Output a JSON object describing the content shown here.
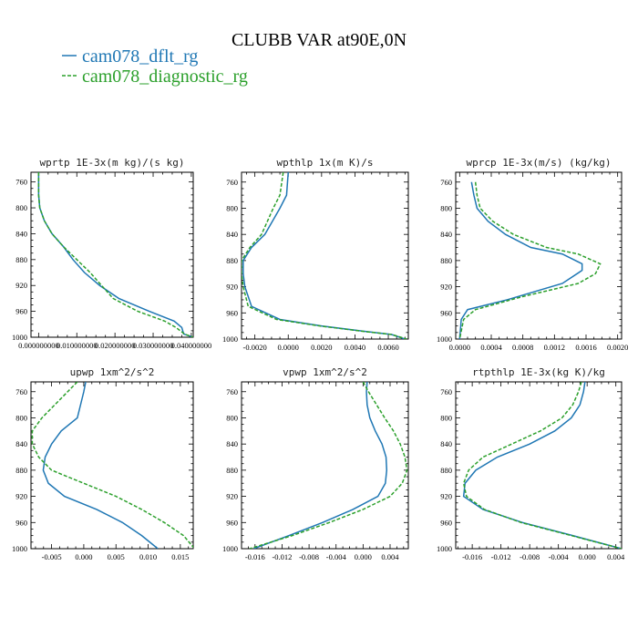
{
  "figure": {
    "title": "CLUBB VAR at90E,0N",
    "legend": [
      {
        "label": "cam078_dflt_rg",
        "color": "#1f77b4",
        "dash": false
      },
      {
        "label": "cam078_diagnostic_rg",
        "color": "#2ca02c",
        "dash": true
      }
    ]
  },
  "chart_data": [
    {
      "type": "line",
      "id": "wprtp",
      "title": "wprtp  1E-3x(m kg)/(s kg)",
      "xlim": [
        -0.002,
        0.0405
      ],
      "ylim": [
        1000,
        745
      ],
      "xticks": [
        0,
        0.01,
        0.02,
        0.03,
        0.04
      ],
      "xtick_labels": [
        "0.000000000",
        "0.010000000",
        "0.020000000",
        "0.030000000",
        "0.040000000"
      ],
      "yticks": [
        760,
        800,
        840,
        880,
        920,
        960,
        1000
      ],
      "series": [
        {
          "name": "cam078_dflt_rg",
          "points": [
            [
              0.0,
              745
            ],
            [
              0.0,
              760
            ],
            [
              0.0,
              780
            ],
            [
              0.0003,
              800
            ],
            [
              0.0015,
              820
            ],
            [
              0.0035,
              840
            ],
            [
              0.0065,
              860
            ],
            [
              0.009,
              880
            ],
            [
              0.012,
              900
            ],
            [
              0.016,
              920
            ],
            [
              0.021,
              940
            ],
            [
              0.029,
              960
            ],
            [
              0.0355,
              975
            ],
            [
              0.0375,
              985
            ],
            [
              0.038,
              995
            ],
            [
              0.0405,
              1000
            ]
          ]
        },
        {
          "name": "cam078_diagnostic_rg",
          "points": [
            [
              0.0,
              745
            ],
            [
              0.0,
              760
            ],
            [
              0.0,
              780
            ],
            [
              0.0003,
              800
            ],
            [
              0.0015,
              820
            ],
            [
              0.0035,
              840
            ],
            [
              0.0065,
              860
            ],
            [
              0.01,
              880
            ],
            [
              0.0135,
              900
            ],
            [
              0.0165,
              920
            ],
            [
              0.0195,
              940
            ],
            [
              0.026,
              960
            ],
            [
              0.033,
              975
            ],
            [
              0.036,
              985
            ],
            [
              0.0382,
              995
            ],
            [
              0.0405,
              1000
            ]
          ]
        }
      ]
    },
    {
      "type": "line",
      "id": "wpthlp",
      "title": "wpthlp  1x(m K)/s",
      "xlim": [
        -0.0028,
        0.0072
      ],
      "ylim": [
        1000,
        745
      ],
      "xticks": [
        -0.002,
        0,
        0.002,
        0.004,
        0.006
      ],
      "xtick_labels": [
        "-0.0020",
        "0.0000",
        "0.0020",
        "0.0040",
        "0.0060"
      ],
      "yticks": [
        760,
        800,
        840,
        880,
        920,
        960,
        1000
      ],
      "series": [
        {
          "name": "cam078_dflt_rg",
          "points": [
            [
              0.0,
              745
            ],
            [
              -0.0001,
              780
            ],
            [
              -0.0005,
              800
            ],
            [
              -0.0014,
              840
            ],
            [
              -0.0022,
              860
            ],
            [
              -0.0027,
              880
            ],
            [
              -0.0027,
              900
            ],
            [
              -0.0026,
              920
            ],
            [
              -0.0022,
              950
            ],
            [
              -0.0005,
              970
            ],
            [
              0.002,
              980
            ],
            [
              0.0045,
              988
            ],
            [
              0.0062,
              993
            ],
            [
              0.007,
              1000
            ]
          ]
        },
        {
          "name": "cam078_diagnostic_rg",
          "points": [
            [
              -0.0003,
              745
            ],
            [
              -0.0005,
              780
            ],
            [
              -0.0009,
              800
            ],
            [
              -0.0016,
              840
            ],
            [
              -0.0023,
              860
            ],
            [
              -0.0028,
              880
            ],
            [
              -0.0028,
              900
            ],
            [
              -0.0027,
              920
            ],
            [
              -0.0024,
              950
            ],
            [
              -0.0007,
              970
            ],
            [
              0.0019,
              980
            ],
            [
              0.0044,
              988
            ],
            [
              0.0062,
              993
            ],
            [
              0.0071,
              1000
            ]
          ]
        }
      ]
    },
    {
      "type": "line",
      "id": "wprcp",
      "title": "wprcp  1E-3x(m/s) (kg/kg)",
      "xlim": [
        -5e-05,
        0.00205
      ],
      "ylim": [
        1000,
        745
      ],
      "xticks": [
        0,
        0.0004,
        0.0008,
        0.0012,
        0.0016,
        0.002
      ],
      "xtick_labels": [
        "0.0000",
        "0.0004",
        "0.0008",
        "0.0012",
        "0.0016",
        "0.0020"
      ],
      "yticks": [
        760,
        800,
        840,
        880,
        920,
        960,
        1000
      ],
      "series": [
        {
          "name": "cam078_dflt_rg",
          "points": [
            [
              0.00015,
              760
            ],
            [
              0.00018,
              780
            ],
            [
              0.00022,
              800
            ],
            [
              0.00036,
              820
            ],
            [
              0.00058,
              840
            ],
            [
              0.0009,
              860
            ],
            [
              0.0013,
              870
            ],
            [
              0.00155,
              885
            ],
            [
              0.00155,
              895
            ],
            [
              0.0013,
              915
            ],
            [
              0.0006,
              940
            ],
            [
              0.0001,
              955
            ],
            [
              2e-05,
              970
            ],
            [
              0.0,
              1000
            ]
          ]
        },
        {
          "name": "cam078_diagnostic_rg",
          "points": [
            [
              0.0002,
              760
            ],
            [
              0.00022,
              780
            ],
            [
              0.00026,
              800
            ],
            [
              0.00042,
              820
            ],
            [
              0.00068,
              840
            ],
            [
              0.0011,
              860
            ],
            [
              0.0015,
              870
            ],
            [
              0.00178,
              885
            ],
            [
              0.00172,
              900
            ],
            [
              0.0015,
              915
            ],
            [
              0.0008,
              935
            ],
            [
              0.0002,
              955
            ],
            [
              5e-05,
              970
            ],
            [
              0.0,
              1000
            ]
          ]
        }
      ]
    },
    {
      "type": "line",
      "id": "upwp",
      "title": "upwp  1xm^2/s^2",
      "xlim": [
        -0.0082,
        0.017
      ],
      "ylim": [
        1000,
        745
      ],
      "xticks": [
        -0.005,
        0,
        0.005,
        0.01,
        0.015
      ],
      "xtick_labels": [
        "-0.005",
        "0.000",
        "0.005",
        "0.010",
        "0.015"
      ],
      "yticks": [
        760,
        800,
        840,
        880,
        920,
        960,
        1000
      ],
      "series": [
        {
          "name": "cam078_dflt_rg",
          "points": [
            [
              0.0003,
              745
            ],
            [
              0.0,
              760
            ],
            [
              -0.0005,
              780
            ],
            [
              -0.001,
              800
            ],
            [
              -0.0035,
              820
            ],
            [
              -0.005,
              840
            ],
            [
              -0.006,
              860
            ],
            [
              -0.0063,
              880
            ],
            [
              -0.0055,
              900
            ],
            [
              -0.003,
              920
            ],
            [
              0.002,
              940
            ],
            [
              0.006,
              960
            ],
            [
              0.009,
              980
            ],
            [
              0.0115,
              1000
            ]
          ]
        },
        {
          "name": "cam078_diagnostic_rg",
          "points": [
            [
              -0.001,
              745
            ],
            [
              -0.0025,
              760
            ],
            [
              -0.0045,
              780
            ],
            [
              -0.0065,
              800
            ],
            [
              -0.008,
              820
            ],
            [
              -0.008,
              840
            ],
            [
              -0.007,
              860
            ],
            [
              -0.005,
              880
            ],
            [
              0.0,
              900
            ],
            [
              0.005,
              920
            ],
            [
              0.009,
              940
            ],
            [
              0.0125,
              960
            ],
            [
              0.0155,
              980
            ],
            [
              0.0172,
              1000
            ]
          ]
        }
      ]
    },
    {
      "type": "line",
      "id": "vpwp",
      "title": "vpwp  1xm^2/s^2",
      "xlim": [
        -0.018,
        0.0067
      ],
      "ylim": [
        1000,
        745
      ],
      "xticks": [
        -0.016,
        -0.012,
        -0.008,
        -0.004,
        0,
        0.004
      ],
      "xtick_labels": [
        "-0.016",
        "-0.012",
        "-0.008",
        "-0.004",
        "0.000",
        "0.004"
      ],
      "yticks": [
        760,
        800,
        840,
        880,
        920,
        960,
        1000
      ],
      "series": [
        {
          "name": "cam078_dflt_rg",
          "points": [
            [
              0.0006,
              745
            ],
            [
              0.0005,
              760
            ],
            [
              0.0006,
              780
            ],
            [
              0.001,
              800
            ],
            [
              0.0018,
              820
            ],
            [
              0.0028,
              840
            ],
            [
              0.0034,
              860
            ],
            [
              0.0035,
              880
            ],
            [
              0.0033,
              900
            ],
            [
              0.0022,
              920
            ],
            [
              -0.0015,
              940
            ],
            [
              -0.006,
              960
            ],
            [
              -0.011,
              980
            ],
            [
              -0.0162,
              1000
            ]
          ]
        },
        {
          "name": "cam078_diagnostic_rg",
          "points": [
            [
              0.0,
              745
            ],
            [
              0.0008,
              760
            ],
            [
              0.002,
              780
            ],
            [
              0.0032,
              800
            ],
            [
              0.0045,
              820
            ],
            [
              0.0055,
              840
            ],
            [
              0.0062,
              860
            ],
            [
              0.0065,
              880
            ],
            [
              0.0058,
              900
            ],
            [
              0.004,
              920
            ],
            [
              0.0,
              940
            ],
            [
              -0.005,
              960
            ],
            [
              -0.0105,
              980
            ],
            [
              -0.0168,
              1000
            ]
          ]
        }
      ]
    },
    {
      "type": "line",
      "id": "rtpthlp",
      "title": "rtpthlp  1E-3x(kg K)/kg",
      "xlim": [
        -0.0183,
        0.0048
      ],
      "ylim": [
        1000,
        745
      ],
      "xticks": [
        -0.016,
        -0.012,
        -0.008,
        -0.004,
        0,
        0.004
      ],
      "xtick_labels": [
        "-0.016",
        "-0.012",
        "-0.008",
        "-0.004",
        "0.000",
        "0.004"
      ],
      "yticks": [
        760,
        800,
        840,
        880,
        920,
        960,
        1000
      ],
      "series": [
        {
          "name": "cam078_dflt_rg",
          "points": [
            [
              -0.0003,
              745
            ],
            [
              -0.0005,
              760
            ],
            [
              -0.001,
              780
            ],
            [
              -0.0022,
              800
            ],
            [
              -0.0045,
              820
            ],
            [
              -0.008,
              840
            ],
            [
              -0.0125,
              860
            ],
            [
              -0.0155,
              880
            ],
            [
              -0.017,
              900
            ],
            [
              -0.0172,
              920
            ],
            [
              -0.0145,
              940
            ],
            [
              -0.009,
              960
            ],
            [
              -0.002,
              980
            ],
            [
              0.0048,
              1000
            ]
          ]
        },
        {
          "name": "cam078_diagnostic_rg",
          "points": [
            [
              -0.0008,
              745
            ],
            [
              -0.0012,
              760
            ],
            [
              -0.002,
              780
            ],
            [
              -0.0035,
              800
            ],
            [
              -0.0065,
              820
            ],
            [
              -0.0105,
              840
            ],
            [
              -0.0145,
              860
            ],
            [
              -0.0165,
              880
            ],
            [
              -0.0172,
              900
            ],
            [
              -0.0168,
              920
            ],
            [
              -0.0143,
              940
            ],
            [
              -0.0092,
              960
            ],
            [
              -0.0022,
              980
            ],
            [
              0.0048,
              1000
            ]
          ]
        }
      ]
    }
  ]
}
